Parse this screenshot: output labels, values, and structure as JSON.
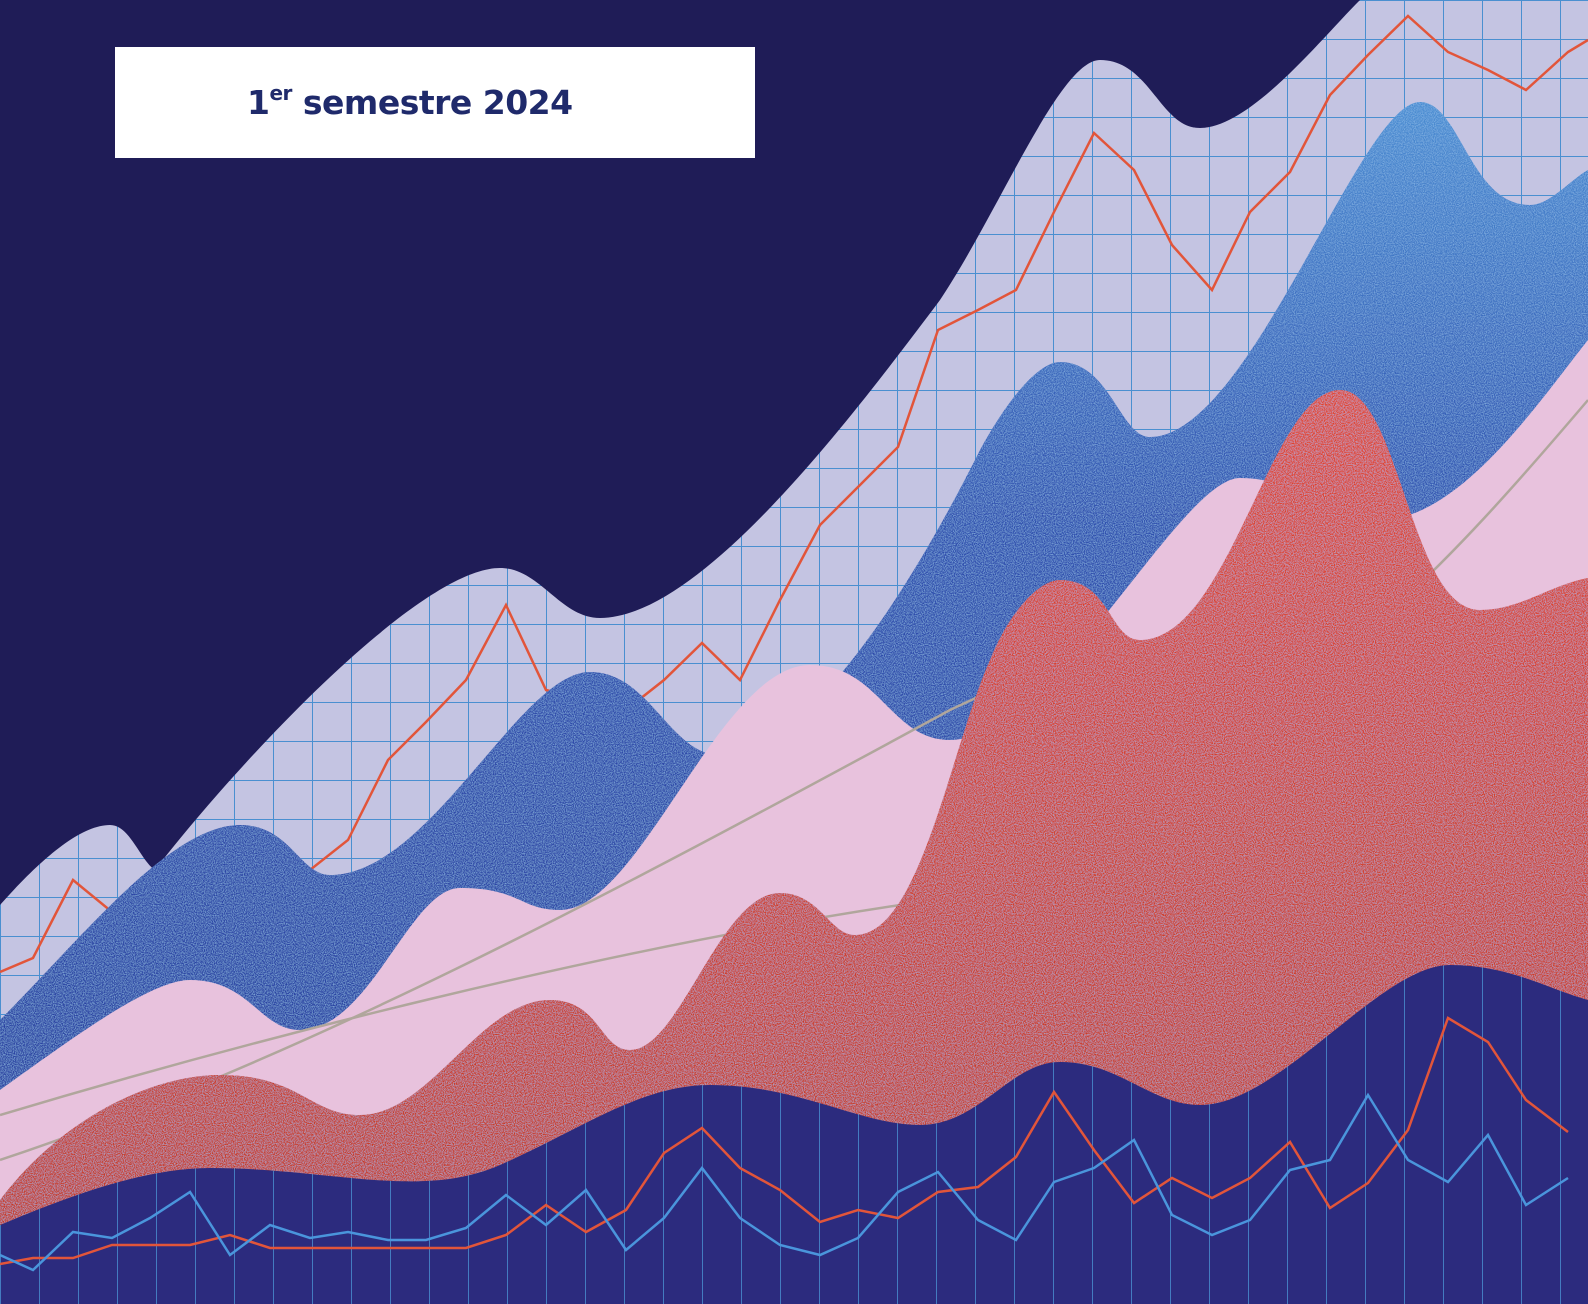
{
  "header": {
    "ordinal": "1",
    "ordinal_suffix": "er",
    "title_rest": "semestre 2024"
  }
}
